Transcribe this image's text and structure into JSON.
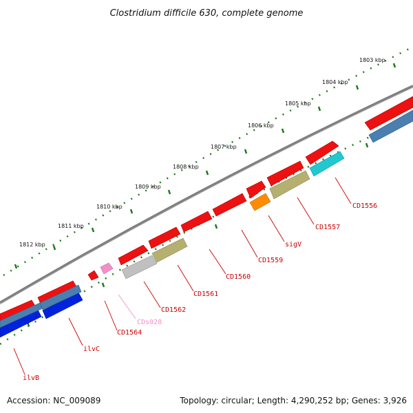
{
  "title": "Clostridium difficile 630, complete genome",
  "footer": {
    "accession": "Accession: NC_009089",
    "topology": "Topology: circular; Length: 4,290,252 bp; Genes: 3,926"
  },
  "ruler_labels": [
    "1803 kbp",
    "1804 kbp",
    "1805 kbp",
    "1806 kbp",
    "1807 kbp",
    "1808 kbp",
    "1809 kbp",
    "1810 kbp",
    "1811 kbp",
    "1812 kbp"
  ],
  "gene_labels": [
    {
      "text": "CD1556",
      "color": "#cc0000"
    },
    {
      "text": "CD1557",
      "color": "#cc0000"
    },
    {
      "text": "sigV",
      "color": "#cc0000"
    },
    {
      "text": "CD1559",
      "color": "#cc0000"
    },
    {
      "text": "CD1560",
      "color": "#cc0000"
    },
    {
      "text": "CD1561",
      "color": "#cc0000"
    },
    {
      "text": "CD1562",
      "color": "#cc0000"
    },
    {
      "text": "CDs028",
      "color": "#f48fc8"
    },
    {
      "text": "CD1564",
      "color": "#cc0000"
    },
    {
      "text": "ilvC",
      "color": "#cc0000"
    },
    {
      "text": "ilvB",
      "color": "#cc0000"
    }
  ],
  "colors": {
    "cds": "#ee1111",
    "backbone": "#808080",
    "ticks": "#1f7a1f",
    "blue": "#0022dd",
    "steelblue": "#4a7fb0",
    "olive": "#b5b070",
    "cyan": "#22c8d0",
    "orange": "#ff8c00",
    "pink": "#f48fc8",
    "gray": "#c0c0c0"
  }
}
